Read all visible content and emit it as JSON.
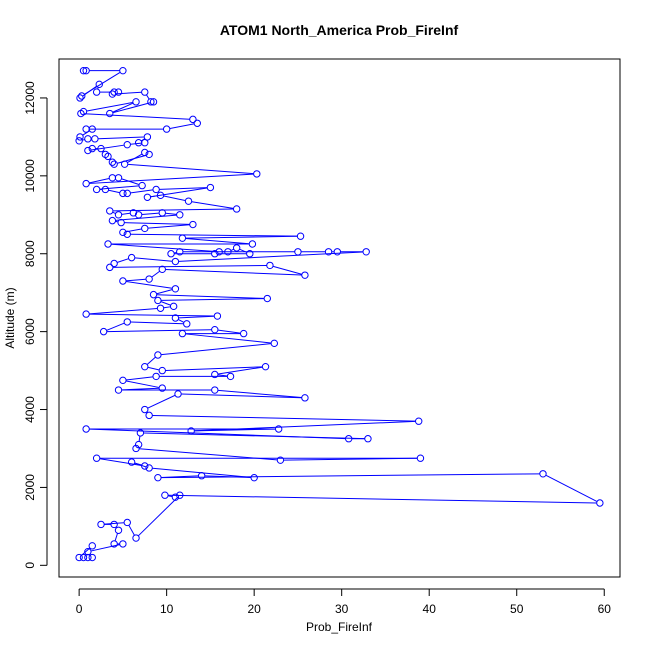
{
  "chart_data": {
    "type": "line",
    "title": "ATOM1 North_America Prob_FireInf",
    "xlabel": "Prob_FireInf",
    "ylabel": "Altitude (m)",
    "xlim": [
      -2.3,
      61.8
    ],
    "ylim": [
      -300,
      13000
    ],
    "x_ticks": [
      "0",
      "10",
      "20",
      "30",
      "40",
      "50",
      "60"
    ],
    "y_ticks": [
      "0",
      "2000",
      "4000",
      "6000",
      "8000",
      "10000",
      "12000"
    ],
    "grid": false,
    "legend": "none",
    "series": [
      {
        "color": "#0000ff",
        "marker": "open-circle",
        "points": [
          [
            0.5,
            12700
          ],
          [
            0.8,
            12700
          ],
          [
            5.0,
            12700
          ],
          [
            0.3,
            12050
          ],
          [
            0.1,
            12000
          ],
          [
            2.3,
            12350
          ],
          [
            2.0,
            12150
          ],
          [
            4.0,
            12150
          ],
          [
            4.5,
            12150
          ],
          [
            3.8,
            12100
          ],
          [
            7.5,
            12150
          ],
          [
            8.2,
            11900
          ],
          [
            8.5,
            11900
          ],
          [
            3.5,
            11600
          ],
          [
            6.5,
            11900
          ],
          [
            0.5,
            11650
          ],
          [
            0.2,
            11600
          ],
          [
            13.0,
            11450
          ],
          [
            13.5,
            11350
          ],
          [
            10.0,
            11200
          ],
          [
            0.8,
            11200
          ],
          [
            1.5,
            11200
          ],
          [
            0.1,
            11000
          ],
          [
            0.0,
            10900
          ],
          [
            1.0,
            10950
          ],
          [
            1.8,
            10950
          ],
          [
            7.8,
            11000
          ],
          [
            6.8,
            10850
          ],
          [
            7.5,
            10850
          ],
          [
            5.5,
            10800
          ],
          [
            1.0,
            10650
          ],
          [
            1.5,
            10700
          ],
          [
            2.5,
            10700
          ],
          [
            3.0,
            10550
          ],
          [
            3.3,
            10500
          ],
          [
            3.8,
            10350
          ],
          [
            4.0,
            10300
          ],
          [
            8.0,
            10550
          ],
          [
            7.5,
            10600
          ],
          [
            5.2,
            10300
          ],
          [
            20.3,
            10050
          ],
          [
            0.8,
            9800
          ],
          [
            3.8,
            9950
          ],
          [
            4.5,
            9950
          ],
          [
            7.2,
            9750
          ],
          [
            2.0,
            9650
          ],
          [
            3.0,
            9650
          ],
          [
            5.0,
            9550
          ],
          [
            5.5,
            9550
          ],
          [
            8.8,
            9650
          ],
          [
            15.0,
            9700
          ],
          [
            7.8,
            9450
          ],
          [
            9.3,
            9500
          ],
          [
            12.5,
            9350
          ],
          [
            18.0,
            9150
          ],
          [
            3.5,
            9100
          ],
          [
            4.5,
            9000
          ],
          [
            6.2,
            9050
          ],
          [
            6.8,
            9000
          ],
          [
            9.5,
            9050
          ],
          [
            11.5,
            9000
          ],
          [
            3.8,
            8850
          ],
          [
            4.8,
            8800
          ],
          [
            13.0,
            8750
          ],
          [
            7.5,
            8650
          ],
          [
            5.0,
            8550
          ],
          [
            5.5,
            8500
          ],
          [
            25.3,
            8450
          ],
          [
            11.8,
            8400
          ],
          [
            19.8,
            8250
          ],
          [
            3.3,
            8250
          ],
          [
            16.0,
            8050
          ],
          [
            17.0,
            8050
          ],
          [
            18.0,
            8150
          ],
          [
            19.5,
            8000
          ],
          [
            15.5,
            8000
          ],
          [
            10.5,
            8000
          ],
          [
            11.5,
            8050
          ],
          [
            25.0,
            8050
          ],
          [
            28.5,
            8050
          ],
          [
            29.5,
            8050
          ],
          [
            32.8,
            8050
          ],
          [
            11.0,
            7800
          ],
          [
            6.0,
            7900
          ],
          [
            4.0,
            7750
          ],
          [
            3.5,
            7650
          ],
          [
            21.8,
            7700
          ],
          [
            25.8,
            7450
          ],
          [
            9.5,
            7600
          ],
          [
            8.0,
            7350
          ],
          [
            5.0,
            7300
          ],
          [
            11.0,
            7100
          ],
          [
            8.5,
            6950
          ],
          [
            21.5,
            6850
          ],
          [
            9.0,
            6800
          ],
          [
            10.8,
            6650
          ],
          [
            9.3,
            6600
          ],
          [
            0.8,
            6450
          ],
          [
            15.8,
            6400
          ],
          [
            11.0,
            6350
          ],
          [
            12.3,
            6200
          ],
          [
            5.5,
            6250
          ],
          [
            2.8,
            6000
          ],
          [
            15.5,
            6050
          ],
          [
            18.8,
            5950
          ],
          [
            11.8,
            5950
          ],
          [
            22.3,
            5700
          ],
          [
            9.0,
            5400
          ],
          [
            7.5,
            5100
          ],
          [
            9.5,
            5000
          ],
          [
            21.3,
            5100
          ],
          [
            15.5,
            4900
          ],
          [
            17.3,
            4850
          ],
          [
            8.8,
            4850
          ],
          [
            5.0,
            4750
          ],
          [
            9.5,
            4550
          ],
          [
            4.5,
            4500
          ],
          [
            15.5,
            4500
          ],
          [
            25.8,
            4300
          ],
          [
            11.3,
            4400
          ],
          [
            7.5,
            4000
          ],
          [
            8.0,
            3850
          ],
          [
            38.8,
            3700
          ],
          [
            12.8,
            3450
          ],
          [
            22.8,
            3500
          ],
          [
            0.8,
            3500
          ],
          [
            30.8,
            3250
          ],
          [
            33.0,
            3250
          ],
          [
            7.0,
            3400
          ],
          [
            6.8,
            3100
          ],
          [
            6.5,
            3000
          ],
          [
            23.0,
            2700
          ],
          [
            39.0,
            2750
          ],
          [
            2.0,
            2750
          ],
          [
            7.5,
            2550
          ],
          [
            6.0,
            2650
          ],
          [
            8.0,
            2500
          ],
          [
            20.0,
            2250
          ],
          [
            14.0,
            2300
          ],
          [
            9.0,
            2250
          ],
          [
            53.0,
            2350
          ],
          [
            59.5,
            1600
          ],
          [
            9.8,
            1800
          ],
          [
            11.0,
            1750
          ],
          [
            11.5,
            1800
          ],
          [
            6.5,
            700
          ],
          [
            5.5,
            1100
          ],
          [
            2.5,
            1050
          ],
          [
            4.0,
            1050
          ],
          [
            4.5,
            900
          ],
          [
            4.0,
            550
          ],
          [
            5.0,
            550
          ],
          [
            1.0,
            350
          ],
          [
            1.5,
            500
          ],
          [
            0.0,
            200
          ],
          [
            0.5,
            200
          ],
          [
            1.0,
            200
          ],
          [
            1.5,
            200
          ]
        ]
      }
    ]
  }
}
